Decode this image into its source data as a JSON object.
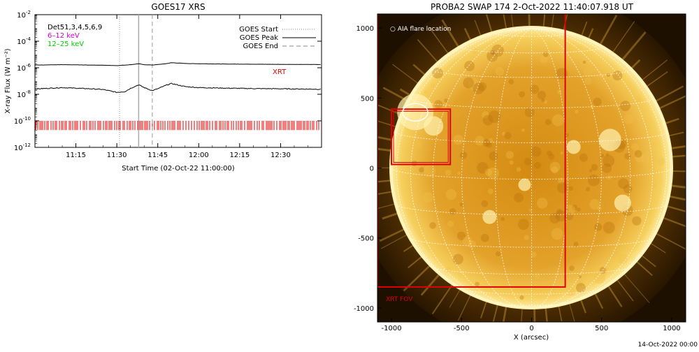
{
  "footer_timestamp": "14-Oct-2022 00:00",
  "colors": {
    "xrt": "#e00000",
    "band_6_12": "#d000d0",
    "band_12_25": "#00cc00",
    "sun_core": "#f5b52a",
    "sun_limb": "#fff1a0",
    "background_dark": "#2a1a00"
  },
  "chart_data": [
    {
      "type": "line",
      "title": "GOES17 XRS",
      "xlabel": "Start Time (02-Oct-22 11:00:00)",
      "ylabel": "X-ray Flux (W m⁻²)",
      "y_scale": "log",
      "ylim": [
        1e-12,
        0.01
      ],
      "y_ticks": [
        {
          "value": 0.01,
          "base": "10",
          "exp": "-2"
        },
        {
          "value": 0.0001,
          "base": "10",
          "exp": "-4"
        },
        {
          "value": 1e-06,
          "base": "10",
          "exp": "-6"
        },
        {
          "value": 1e-08,
          "base": "10",
          "exp": "-8"
        },
        {
          "value": 1e-10,
          "base": "10",
          "exp": "-10"
        },
        {
          "value": 1e-12,
          "base": "10",
          "exp": "-12"
        }
      ],
      "xlim": [
        "11:00",
        "12:45"
      ],
      "x_ticks": [
        "11:15",
        "11:30",
        "11:45",
        "12:00",
        "12:15",
        "12:30"
      ],
      "grid": false,
      "band_labels": [
        {
          "text": "Det51,3,4,5,6,9",
          "color": "#000000"
        },
        {
          "text": "6–12 keV",
          "color": "#d000d0"
        },
        {
          "text": "12–25 keV",
          "color": "#00cc00"
        }
      ],
      "legend": {
        "placement": "top-right",
        "entries": [
          {
            "label": "GOES Start",
            "style": "dotted"
          },
          {
            "label": "GOES Peak",
            "style": "solid"
          },
          {
            "label": "GOES End",
            "style": "dashed"
          }
        ]
      },
      "annotation": "XRT",
      "markers": {
        "goes_start": "11:31",
        "goes_peak": "11:38",
        "goes_end": "11:43"
      },
      "series": [
        {
          "band": "long",
          "x": [
            "11:00",
            "11:10",
            "11:20",
            "11:25",
            "11:30",
            "11:35",
            "11:38",
            "11:40",
            "11:43",
            "11:48",
            "11:50",
            "11:55",
            "12:00",
            "12:10",
            "12:20",
            "12:30",
            "12:45"
          ],
          "y": [
            1.6e-06,
            1.7e-06,
            1.6e-06,
            1.55e-06,
            1.45e-06,
            1.7e-06,
            2e-06,
            1.7e-06,
            1.6e-06,
            2e-06,
            2.4e-06,
            2.1e-06,
            2e-06,
            1.9e-06,
            1.85e-06,
            1.8e-06,
            1.75e-06
          ]
        },
        {
          "band": "short",
          "x": [
            "11:00",
            "11:10",
            "11:20",
            "11:25",
            "11:30",
            "11:33",
            "11:35",
            "11:38",
            "11:40",
            "11:43",
            "11:45",
            "11:48",
            "11:50",
            "11:55",
            "12:00",
            "12:10",
            "12:20",
            "12:30",
            "12:45"
          ],
          "y": [
            2.5e-08,
            3.2e-08,
            2.6e-08,
            2.3e-08,
            1.4e-08,
            1.6e-08,
            2.8e-08,
            5.2e-08,
            3.2e-08,
            1.9e-08,
            2.6e-08,
            4.8e-08,
            6.5e-08,
            3.8e-08,
            3.2e-08,
            2.9e-08,
            2.7e-08,
            2.6e-08,
            2.4e-08
          ]
        }
      ],
      "xrt_observation_band": {
        "y_range": [
          2e-11,
          1e-10
        ]
      }
    },
    {
      "type": "image",
      "title": "PROBA2 SWAP 174  2-Oct-2022 11:40:07.918 UT",
      "xlabel": "X (arcsec)",
      "ylabel": "",
      "xlim": [
        -1100,
        1100
      ],
      "ylim": [
        -1100,
        1100
      ],
      "x_ticks": [
        "-1000",
        "-500",
        "0",
        "500",
        "1000"
      ],
      "y_ticks": [
        "1000",
        "500",
        "0",
        "-500",
        "-1000"
      ],
      "grid": false,
      "legend_text": "AIA flare location",
      "xrt_fov_label": "XRT FOV",
      "xrt_fov": {
        "x": [
          -1100,
          240
        ],
        "y": [
          -850,
          1110
        ]
      },
      "xrt_sub_box": {
        "x": [
          -1000,
          -580
        ],
        "y": [
          25,
          420
        ]
      },
      "flare_location": {
        "x": [
          -920,
          -740
        ],
        "y": [
          335,
          460
        ]
      },
      "solar_radius_arcsec": 1000
    }
  ]
}
